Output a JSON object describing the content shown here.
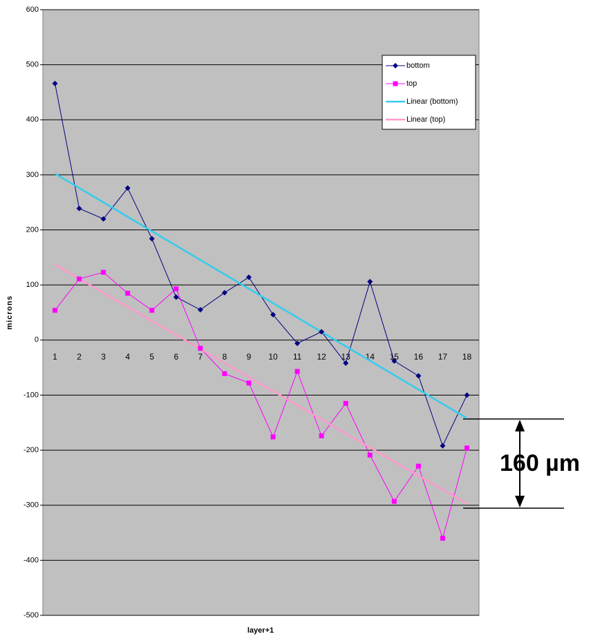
{
  "chart_data": {
    "type": "line",
    "x_label": "layer+1",
    "y_label": "microns",
    "categories": [
      "1",
      "2",
      "3",
      "4",
      "5",
      "6",
      "7",
      "8",
      "9",
      "10",
      "11",
      "12",
      "13",
      "14",
      "15",
      "16",
      "17",
      "18"
    ],
    "series": [
      {
        "name": "bottom",
        "color": "#000080",
        "marker": "diamond",
        "values": [
          466,
          239,
          220,
          276,
          184,
          78,
          55,
          86,
          114,
          46,
          -6,
          15,
          -42,
          106,
          -38,
          -65,
          -192,
          -100
        ]
      },
      {
        "name": "top",
        "color": "#ff00ff",
        "marker": "square",
        "values": [
          54,
          111,
          123,
          85,
          54,
          93,
          -15,
          -61,
          -78,
          -176,
          -57,
          -174,
          -115,
          -209,
          -293,
          -229,
          -360,
          -196
        ]
      },
      {
        "name": "Linear (bottom)",
        "color": "#33ccee",
        "trendline_of": "bottom"
      },
      {
        "name": "Linear (top)",
        "color": "#ff99cc",
        "trendline_of": "top"
      }
    ],
    "ylim": [
      -500,
      600
    ],
    "yticks": [
      -500,
      -400,
      -300,
      -200,
      -100,
      0,
      100,
      200,
      300,
      400,
      500,
      600
    ],
    "grid": true,
    "annotation": "160 µm"
  }
}
